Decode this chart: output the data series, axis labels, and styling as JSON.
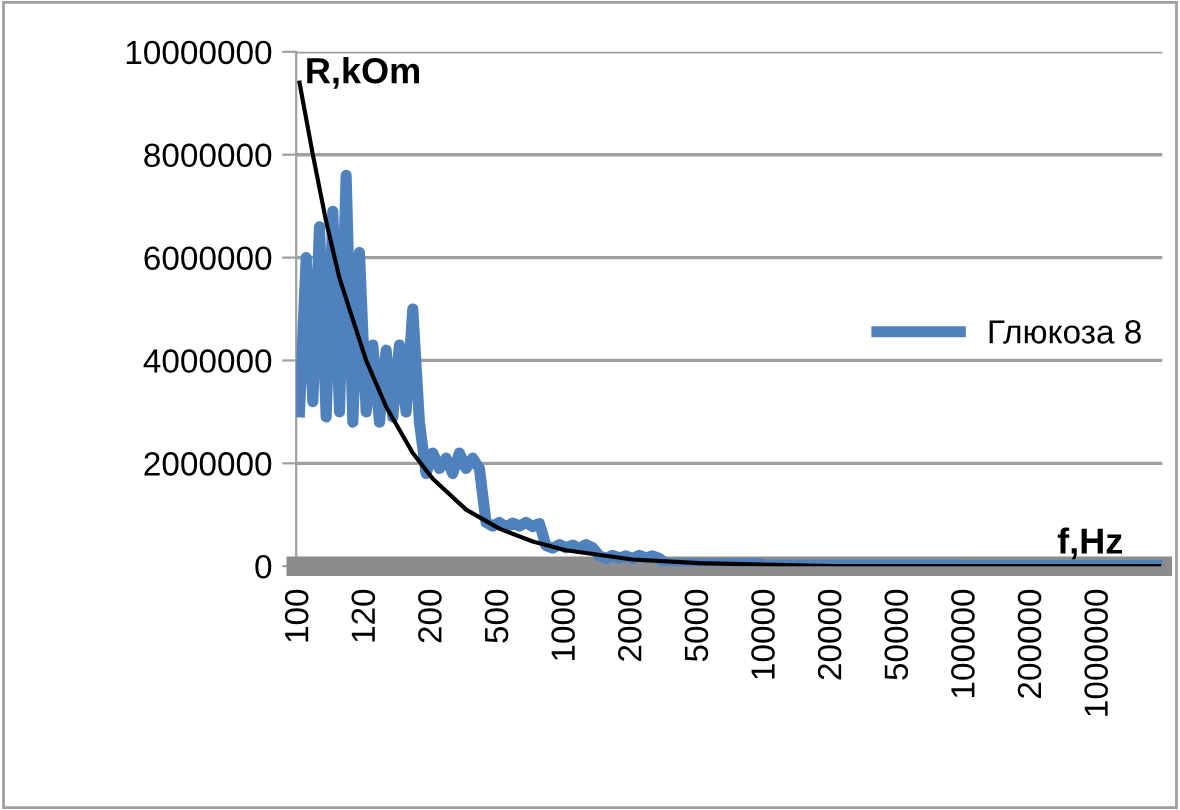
{
  "chart_data": {
    "type": "line",
    "xlabel": "f,Hz",
    "ylabel": "R,kOm",
    "categories": [
      "100",
      null,
      null,
      null,
      null,
      null,
      null,
      null,
      null,
      null,
      "120",
      null,
      null,
      null,
      null,
      null,
      null,
      null,
      null,
      null,
      "200",
      null,
      null,
      null,
      null,
      null,
      null,
      null,
      null,
      null,
      "500",
      null,
      null,
      null,
      null,
      null,
      null,
      null,
      null,
      null,
      "1000",
      null,
      null,
      null,
      null,
      null,
      null,
      null,
      null,
      null,
      "2000",
      null,
      null,
      null,
      null,
      null,
      null,
      null,
      null,
      null,
      "5000",
      null,
      null,
      null,
      null,
      null,
      null,
      null,
      null,
      null,
      "10000",
      null,
      null,
      null,
      null,
      null,
      null,
      null,
      null,
      null,
      "20000",
      null,
      null,
      null,
      null,
      null,
      null,
      null,
      null,
      null,
      "50000",
      null,
      null,
      null,
      null,
      null,
      null,
      null,
      null,
      null,
      "100000",
      null,
      null,
      null,
      null,
      null,
      null,
      null,
      null,
      null,
      "200000",
      null,
      null,
      null,
      null,
      null,
      null,
      null,
      null,
      null,
      "1000000",
      null,
      null,
      null,
      null,
      null,
      null,
      null,
      null,
      null
    ],
    "series": [
      {
        "name": "Глюкоза 8",
        "color": "#4f81bd",
        "values": [
          3000000,
          6000000,
          3200000,
          6600000,
          2900000,
          6900000,
          3000000,
          7600000,
          2800000,
          6100000,
          3000000,
          4300000,
          2800000,
          4200000,
          2900000,
          4300000,
          3000000,
          5000000,
          2800000,
          1800000,
          2200000,
          1900000,
          2100000,
          1800000,
          2200000,
          1900000,
          2100000,
          1900000,
          850000,
          780000,
          850000,
          760000,
          840000,
          780000,
          850000,
          770000,
          830000,
          400000,
          350000,
          420000,
          360000,
          410000,
          350000,
          420000,
          360000,
          200000,
          150000,
          210000,
          160000,
          200000,
          150000,
          210000,
          160000,
          200000,
          150000,
          50000,
          40000,
          50000,
          40000,
          50000,
          40000,
          50000,
          40000,
          50000,
          40000,
          50000,
          40000,
          50000,
          40000,
          50000,
          20000,
          20000,
          20000,
          20000,
          20000,
          20000,
          20000,
          20000,
          20000,
          20000,
          20000,
          20000,
          20000,
          20000,
          20000,
          20000,
          20000,
          20000,
          20000,
          20000,
          20000,
          20000,
          20000,
          20000,
          20000,
          20000,
          20000,
          20000,
          20000,
          20000,
          10000,
          10000,
          10000,
          10000,
          10000,
          10000,
          10000,
          10000,
          10000,
          10000,
          10000,
          10000,
          10000,
          10000,
          10000,
          10000,
          10000,
          10000,
          10000,
          10000,
          10000,
          10000,
          10000,
          10000,
          10000,
          10000,
          10000,
          10000,
          10000,
          10000
        ]
      },
      {
        "type": "line",
        "color": "#000000",
        "values": [
          9400000,
          null,
          8000000,
          null,
          6700000,
          null,
          5600000,
          null,
          4800000,
          null,
          4000000,
          null,
          null,
          3100000,
          null,
          null,
          null,
          2200000,
          null,
          null,
          1700000,
          null,
          null,
          null,
          null,
          1100000,
          null,
          null,
          null,
          null,
          730000,
          null,
          null,
          null,
          null,
          480000,
          null,
          null,
          null,
          null,
          310000,
          null,
          null,
          null,
          null,
          null,
          null,
          null,
          null,
          null,
          130000,
          null,
          null,
          null,
          null,
          null,
          null,
          null,
          null,
          null,
          60000,
          null,
          null,
          null,
          null,
          null,
          null,
          null,
          null,
          null,
          null,
          null,
          null,
          null,
          null,
          null,
          null,
          null,
          null,
          null,
          0,
          null,
          null,
          null,
          null,
          null,
          null,
          null,
          null,
          null,
          null,
          null,
          null,
          null,
          null,
          null,
          null,
          null,
          null,
          null,
          0,
          null,
          null,
          null,
          null,
          null,
          null,
          null,
          null,
          null,
          null,
          null,
          null,
          null,
          null,
          null,
          null,
          null,
          null,
          null,
          null,
          null,
          null,
          null,
          null,
          null,
          null,
          null,
          null,
          0
        ]
      }
    ],
    "ylim": [
      0,
      10000000
    ],
    "yticks": [
      0,
      2000000,
      4000000,
      6000000,
      8000000,
      10000000
    ],
    "grid": "y",
    "legend": "right",
    "marker": "none",
    "line_style": "solid"
  }
}
